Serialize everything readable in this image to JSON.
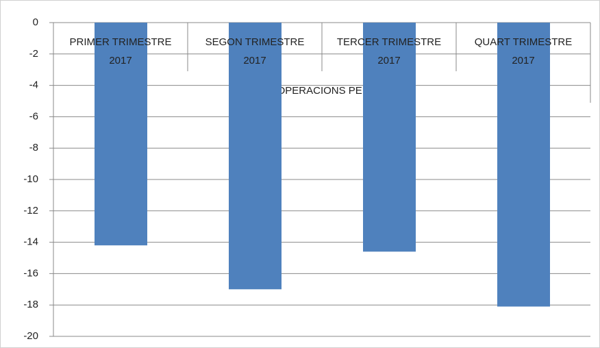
{
  "chart_data": {
    "type": "bar",
    "x_label": "RATI D' OPERACIONS PENDENTS",
    "categories": [
      "PRIMER TRIMESTRE 2017",
      "SEGON TRIMESTRE 2017",
      "TERCER TRIMESTRE 2017",
      "QUART TRIMESTRE 2017"
    ],
    "values": [
      -14.2,
      -17,
      -14.6,
      -18.1
    ],
    "color": "#4f81bd",
    "ylim": [
      -20,
      0
    ],
    "yticks": [
      -20,
      -18,
      -16,
      -14,
      -12,
      -10,
      -8,
      -6,
      -4,
      -2,
      0
    ],
    "grid": true
  }
}
